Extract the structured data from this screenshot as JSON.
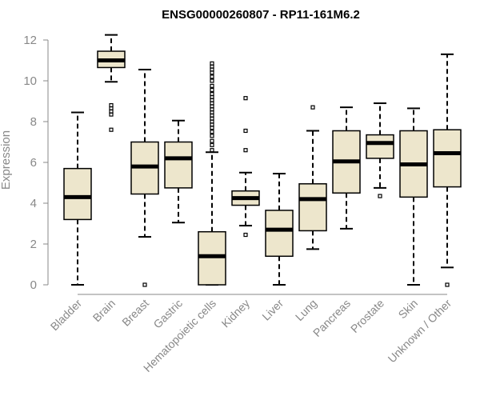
{
  "chart_data": {
    "type": "boxplot",
    "title": "ENSG00000260807 - RP11-161M6.2",
    "xlabel": "",
    "ylabel": "Expression",
    "ylim": [
      0,
      12
    ],
    "yticks": [
      0,
      2,
      4,
      6,
      8,
      10,
      12
    ],
    "box_color": "#EDE6CC",
    "categories": [
      "Bladder",
      "Brain",
      "Breast",
      "Gastric",
      "Hematopoietic cells",
      "Kidney",
      "Liver",
      "Lung",
      "Pancreas",
      "Prostate",
      "Skin",
      "Unknown / Other"
    ],
    "boxes": [
      {
        "name": "Bladder",
        "whisker_low": 0.0,
        "q1": 3.2,
        "median": 4.3,
        "q3": 5.7,
        "whisker_high": 8.45,
        "outliers": []
      },
      {
        "name": "Brain",
        "whisker_low": 9.95,
        "q1": 10.65,
        "median": 11.0,
        "q3": 11.45,
        "whisker_high": 12.25,
        "outliers": [
          7.6,
          8.35,
          8.5,
          8.65,
          8.8
        ]
      },
      {
        "name": "Breast",
        "whisker_low": 2.35,
        "q1": 4.45,
        "median": 5.8,
        "q3": 7.0,
        "whisker_high": 10.55,
        "outliers": [
          0.0
        ]
      },
      {
        "name": "Gastric",
        "whisker_low": 3.05,
        "q1": 4.75,
        "median": 6.2,
        "q3": 7.0,
        "whisker_high": 8.05,
        "outliers": []
      },
      {
        "name": "Hematopoietic cells",
        "whisker_low": 0.0,
        "q1": 0.0,
        "median": 1.4,
        "q3": 2.6,
        "whisker_high": 6.5,
        "outliers": [
          6.6,
          6.85,
          7.05,
          7.3,
          7.5,
          7.7,
          7.85,
          8.0,
          8.15,
          8.3,
          8.45,
          8.6,
          8.75,
          8.9,
          9.05,
          9.2,
          9.35,
          9.55,
          9.75,
          10.0,
          10.2,
          10.4,
          10.55,
          10.7,
          10.85
        ]
      },
      {
        "name": "Kidney",
        "whisker_low": 2.9,
        "q1": 3.9,
        "median": 4.25,
        "q3": 4.6,
        "whisker_high": 5.5,
        "outliers": [
          2.45,
          6.6,
          7.55,
          9.15
        ]
      },
      {
        "name": "Liver",
        "whisker_low": 0.0,
        "q1": 1.4,
        "median": 2.7,
        "q3": 3.65,
        "whisker_high": 5.45,
        "outliers": []
      },
      {
        "name": "Lung",
        "whisker_low": 1.75,
        "q1": 2.65,
        "median": 4.2,
        "q3": 4.95,
        "whisker_high": 7.55,
        "outliers": [
          8.7
        ]
      },
      {
        "name": "Pancreas",
        "whisker_low": 2.75,
        "q1": 4.5,
        "median": 6.05,
        "q3": 7.55,
        "whisker_high": 8.7,
        "outliers": []
      },
      {
        "name": "Prostate",
        "whisker_low": 4.75,
        "q1": 6.2,
        "median": 6.95,
        "q3": 7.35,
        "whisker_high": 8.9,
        "outliers": [
          4.35
        ]
      },
      {
        "name": "Skin",
        "whisker_low": 0.0,
        "q1": 4.3,
        "median": 5.9,
        "q3": 7.55,
        "whisker_high": 8.65,
        "outliers": []
      },
      {
        "name": "Unknown / Other",
        "whisker_low": 0.85,
        "q1": 4.8,
        "median": 6.45,
        "q3": 7.6,
        "whisker_high": 11.3,
        "outliers": [
          0.0
        ]
      }
    ]
  }
}
